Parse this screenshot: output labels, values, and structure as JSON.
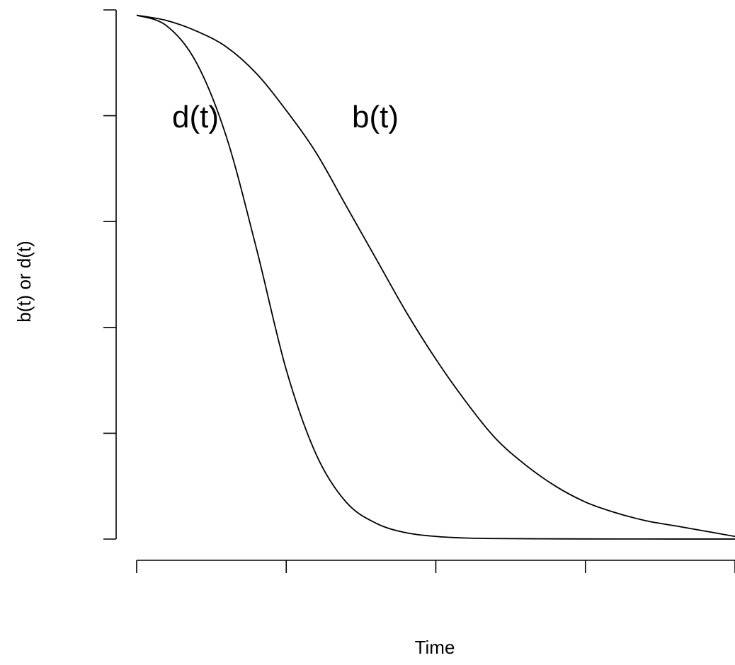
{
  "chart_data": {
    "type": "line",
    "title": "",
    "xlabel": "Time",
    "ylabel": "b(t) or d(t)",
    "xlim": [
      0,
      1
    ],
    "ylim": [
      0,
      1
    ],
    "x_ticks": [
      0,
      0.25,
      0.5,
      0.75,
      1.0
    ],
    "y_ticks": [
      0,
      0.2,
      0.4,
      0.6,
      0.8,
      1.0
    ],
    "tick_labels_shown": false,
    "grid": false,
    "legend": "none",
    "series": [
      {
        "name": "d(t)",
        "x": [
          0,
          0.05,
          0.1,
          0.15,
          0.2,
          0.25,
          0.3,
          0.35,
          0.4,
          0.45,
          0.5,
          0.55,
          0.6,
          0.7,
          0.8,
          0.9,
          1.0
        ],
        "values": [
          0.99,
          0.97,
          0.9,
          0.76,
          0.55,
          0.32,
          0.16,
          0.07,
          0.03,
          0.012,
          0.005,
          0.002,
          0.001,
          0.0004,
          0.0002,
          0.0001,
          0.0001
        ]
      },
      {
        "name": "b(t)",
        "x": [
          0,
          0.05,
          0.1,
          0.15,
          0.2,
          0.25,
          0.3,
          0.35,
          0.4,
          0.45,
          0.5,
          0.55,
          0.6,
          0.65,
          0.7,
          0.75,
          0.8,
          0.85,
          0.9,
          0.95,
          1.0
        ],
        "values": [
          0.99,
          0.98,
          0.96,
          0.93,
          0.88,
          0.81,
          0.73,
          0.63,
          0.53,
          0.43,
          0.34,
          0.26,
          0.19,
          0.14,
          0.1,
          0.07,
          0.05,
          0.035,
          0.025,
          0.015,
          0.005
        ]
      }
    ],
    "annotations": [
      {
        "text": "d(t)",
        "series": "d(t)"
      },
      {
        "text": "b(t)",
        "series": "b(t)"
      }
    ]
  }
}
